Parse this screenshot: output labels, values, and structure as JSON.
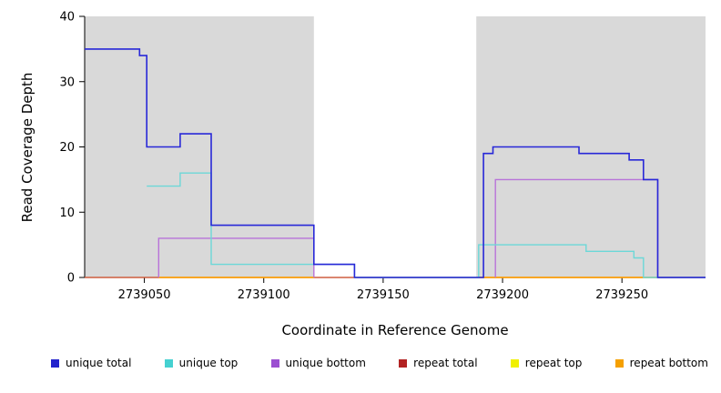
{
  "chart_data": {
    "type": "line",
    "subtype": "step-coverage-plot",
    "title": "",
    "xlabel": "Coordinate in Reference Genome",
    "ylabel": "Read Coverage Depth",
    "xlim": [
      2739025,
      2739285
    ],
    "ylim": [
      0,
      40
    ],
    "x_ticks": [
      2739050,
      2739100,
      2739150,
      2739200,
      2739250
    ],
    "y_ticks": [
      0,
      10,
      20,
      30,
      40
    ],
    "grid": false,
    "legend_position": "bottom",
    "shaded_regions": [
      {
        "x1": 2739025,
        "x2": 2739121,
        "color": "#d9d9d9"
      },
      {
        "x1": 2739189,
        "x2": 2739285,
        "color": "#d9d9d9"
      }
    ],
    "series": [
      {
        "name": "repeat top",
        "color": "#f0f000",
        "width": 1.2,
        "segments": [
          [
            [
              2739025,
              0
            ],
            [
              2739285,
              0
            ]
          ]
        ]
      },
      {
        "name": "repeat total",
        "color": "#c84040",
        "width": 1.2,
        "segments": [
          [
            [
              2739025,
              0
            ],
            [
              2739285,
              0
            ]
          ]
        ]
      },
      {
        "name": "repeat bottom",
        "color": "#ff9d00",
        "width": 1.4,
        "segments": [
          [
            [
              2739056,
              0
            ],
            [
              2739121,
              0
            ]
          ],
          [
            [
              2739190,
              0
            ],
            [
              2739285,
              0
            ]
          ]
        ]
      },
      {
        "name": "unique bottom",
        "color": "#b873d9",
        "width": 1.4,
        "segments": [
          [
            [
              2739056,
              0
            ],
            [
              2739056,
              6
            ],
            [
              2739121,
              6
            ],
            [
              2739121,
              0
            ]
          ],
          [
            [
              2739197,
              0
            ],
            [
              2739197,
              15
            ],
            [
              2739265,
              15
            ],
            [
              2739265,
              0
            ],
            [
              2739285,
              0
            ]
          ]
        ]
      },
      {
        "name": "unique top",
        "color": "#6cd8d8",
        "width": 1.4,
        "segments": [
          [
            [
              2739051,
              14
            ],
            [
              2739065,
              14
            ],
            [
              2739065,
              16
            ],
            [
              2739078,
              16
            ],
            [
              2739078,
              2
            ],
            [
              2739138,
              2
            ],
            [
              2739138,
              0
            ],
            [
              2739190,
              0
            ],
            [
              2739190,
              5
            ],
            [
              2739235,
              5
            ],
            [
              2739235,
              4
            ],
            [
              2739255,
              4
            ],
            [
              2739255,
              3
            ],
            [
              2739259,
              3
            ],
            [
              2739259,
              0
            ],
            [
              2739285,
              0
            ]
          ]
        ]
      },
      {
        "name": "unique total",
        "color": "#2828d8",
        "width": 1.6,
        "segments": [
          [
            [
              2739025,
              35
            ],
            [
              2739048,
              35
            ],
            [
              2739048,
              34
            ],
            [
              2739051,
              34
            ],
            [
              2739051,
              20
            ],
            [
              2739065,
              20
            ],
            [
              2739065,
              22
            ],
            [
              2739078,
              22
            ],
            [
              2739078,
              8
            ],
            [
              2739121,
              8
            ],
            [
              2739121,
              2
            ],
            [
              2739138,
              2
            ],
            [
              2739138,
              0
            ],
            [
              2739192,
              0
            ],
            [
              2739192,
              19
            ],
            [
              2739196,
              19
            ],
            [
              2739196,
              20
            ],
            [
              2739232,
              20
            ],
            [
              2739232,
              19
            ],
            [
              2739253,
              19
            ],
            [
              2739253,
              18
            ],
            [
              2739259,
              18
            ],
            [
              2739259,
              15
            ],
            [
              2739265,
              15
            ],
            [
              2739265,
              0
            ],
            [
              2739285,
              0
            ]
          ]
        ]
      }
    ],
    "legend": [
      {
        "label": "unique total",
        "color": "#2222cc"
      },
      {
        "label": "unique top",
        "color": "#45d1d1"
      },
      {
        "label": "unique bottom",
        "color": "#9b4fd1"
      },
      {
        "label": "repeat total",
        "color": "#b22222"
      },
      {
        "label": "repeat top",
        "color": "#f0f000"
      },
      {
        "label": "repeat bottom",
        "color": "#f5a000"
      }
    ]
  }
}
